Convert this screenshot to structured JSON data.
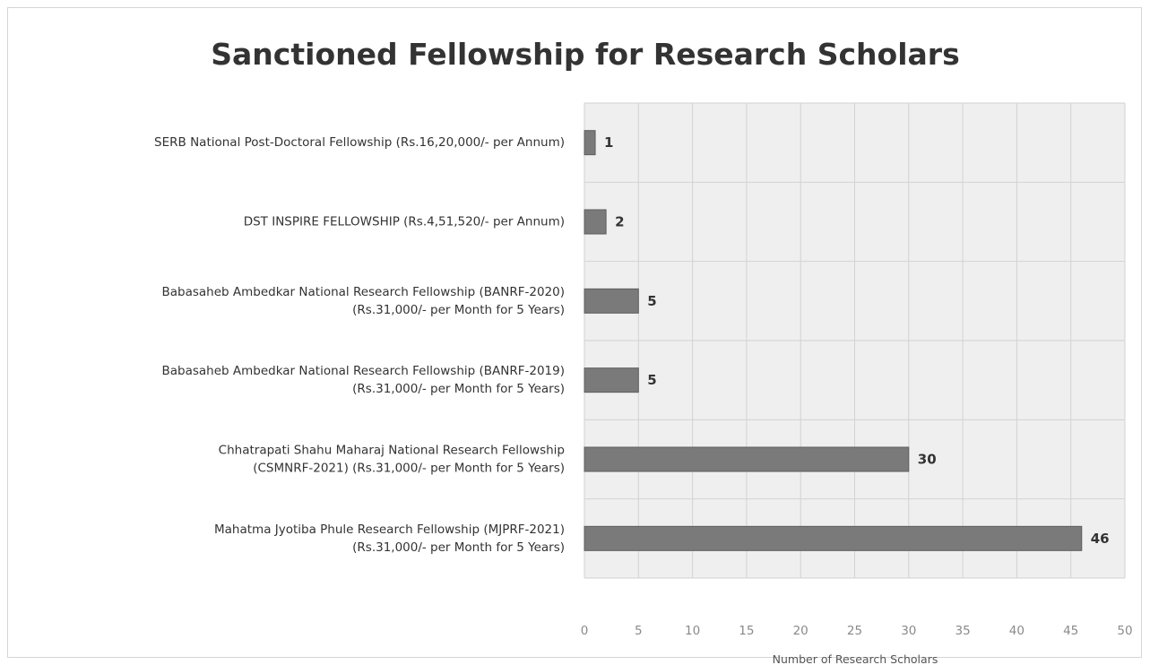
{
  "chart_data": {
    "type": "bar",
    "orientation": "horizontal",
    "title": "Sanctioned Fellowship for Research Scholars",
    "xlabel": "Number of Research Scholars",
    "ylabel": "",
    "xlim": [
      0,
      50
    ],
    "xticks": [
      "0",
      "5",
      "10",
      "15",
      "20",
      "25",
      "30",
      "35",
      "40",
      "45",
      "50"
    ],
    "grid": true,
    "legend": "none",
    "categories": [
      [
        "SERB National Post-Doctoral Fellowship (Rs.16,20,000/- per Annum)"
      ],
      [
        "DST INSPIRE FELLOWSHIP (Rs.4,51,520/- per Annum)"
      ],
      [
        "Babasaheb Ambedkar National Research Fellowship (BANRF-2020)",
        "(Rs.31,000/- per Month for 5 Years)"
      ],
      [
        "Babasaheb Ambedkar National Research Fellowship (BANRF-2019)",
        "(Rs.31,000/- per Month for 5 Years)"
      ],
      [
        "Chhatrapati Shahu Maharaj National Research Fellowship",
        "(CSMNRF-2021) (Rs.31,000/- per Month for 5 Years)"
      ],
      [
        "Mahatma Jyotiba Phule Research Fellowship (MJPRF-2021)",
        "(Rs.31,000/- per Month for 5 Years)"
      ]
    ],
    "values": [
      1,
      2,
      5,
      5,
      30,
      46
    ],
    "data_labels": [
      "1",
      "2",
      "5",
      "5",
      "30",
      "46"
    ],
    "colors": {
      "bar": "#7a7a7a",
      "bar_edge": "#5e5e5e",
      "plot_background": "#efefef",
      "gridline": "#d2d2d2"
    }
  }
}
